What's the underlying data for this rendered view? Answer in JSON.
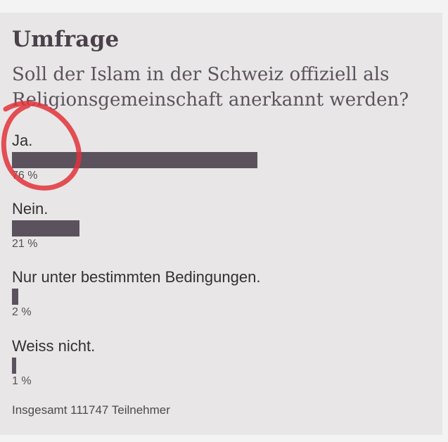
{
  "poll": {
    "title": "Umfrage",
    "question_line1": "Soll der Islam in der Schweiz offiziell als",
    "question_line2": "Religionsgemeinschaft anerkannt werden?",
    "options": [
      {
        "label": "Ja.",
        "percent_text": "76 %",
        "fraction": 0.76
      },
      {
        "label": "Nein.",
        "percent_text": "21 %",
        "fraction": 0.21
      },
      {
        "label": "Nur unter bestimmten Bedingungen.",
        "percent_text": "2 %",
        "fraction": 0.02
      },
      {
        "label": "Weiss nicht.",
        "percent_text": "1 %",
        "fraction": 0.01
      }
    ],
    "total": "Insgesamt 111747 Teilnehmer"
  },
  "colors": {
    "bar": "#5b525d",
    "annotation_circle": "#e0323a"
  }
}
